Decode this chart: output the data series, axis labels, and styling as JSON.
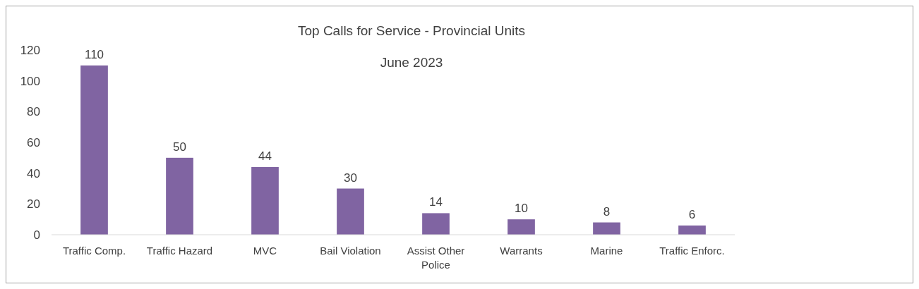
{
  "chart_data": {
    "type": "bar",
    "title": "Top Calls for Service - Provincial Units",
    "subtitle": "June 2023",
    "categories": [
      "Traffic Comp.",
      "Traffic Hazard",
      "MVC",
      "Bail Violation",
      "Assist Other Police",
      "Warrants",
      "Marine",
      "Traffic Enforc."
    ],
    "values": [
      110,
      50,
      44,
      30,
      14,
      10,
      8,
      6
    ],
    "color": "#8064a2",
    "ylim": [
      0,
      120
    ],
    "yticks": [
      0,
      20,
      40,
      60,
      80,
      100,
      120
    ],
    "data_labels": true
  }
}
